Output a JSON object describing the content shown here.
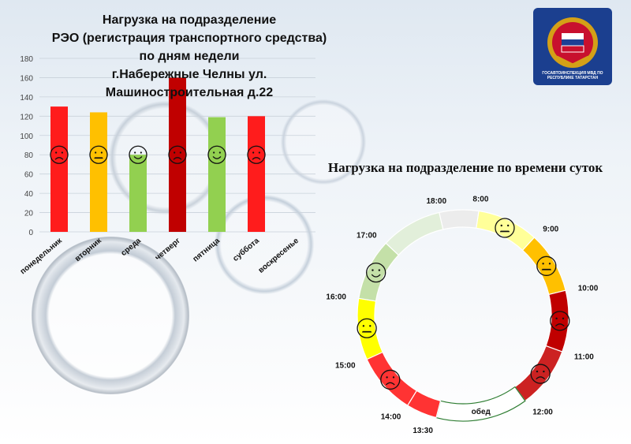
{
  "chart_data": [
    {
      "type": "bar",
      "title": "Нагрузка на подразделение РЭО (регистрация транспортного средства) по дням недели г.Набережные Челны ул. Машиностроительная д.22",
      "categories": [
        "понедельник",
        "вторник",
        "среда",
        "четверг",
        "пятница",
        "суббота",
        "воскресенье"
      ],
      "values": [
        130,
        124,
        80,
        160,
        119,
        120,
        0
      ],
      "colors": [
        "#ff1c1c",
        "#ffc000",
        "#92d050",
        "#c00000",
        "#92d050",
        "#ff1c1c",
        ""
      ],
      "moods": [
        "sad",
        "neutral",
        "happy",
        "sad",
        "happy",
        "sad",
        ""
      ],
      "ylim": [
        0,
        180
      ],
      "yticks": [
        0,
        20,
        40,
        60,
        80,
        100,
        120,
        140,
        160,
        180
      ],
      "grid": true
    },
    {
      "type": "pie",
      "title": "Нагрузка на подразделение по времени суток",
      "segments": [
        {
          "from": "8:00",
          "to": "9:00",
          "color": "#ffff99",
          "mood": "neutral"
        },
        {
          "from": "9:00",
          "to": "10:00",
          "color": "#ffc000",
          "mood": "neutral"
        },
        {
          "from": "10:00",
          "to": "11:00",
          "color": "#c00000",
          "mood": "sad"
        },
        {
          "from": "11:00",
          "to": "12:00",
          "color": "#cc2222",
          "mood": "sad"
        },
        {
          "from": "12:00",
          "to": "13:30",
          "color": "#ffffff",
          "label": "обед"
        },
        {
          "from": "13:30",
          "to": "14:00",
          "color": "#ff3333",
          "mood": ""
        },
        {
          "from": "14:00",
          "to": "15:00",
          "color": "#ff3333",
          "mood": "sad"
        },
        {
          "from": "15:00",
          "to": "16:00",
          "color": "#ffff00",
          "mood": "neutral"
        },
        {
          "from": "16:00",
          "to": "17:00",
          "color": "#c4e0a8",
          "mood": "happy"
        },
        {
          "from": "17:00",
          "to": "18:00",
          "color": "#e2efda",
          "mood": ""
        },
        {
          "from": "18:00",
          "to": "8:00",
          "color": "#ececec",
          "mood": ""
        }
      ],
      "time_labels": [
        "8:00",
        "9:00",
        "10:00",
        "11:00",
        "12:00",
        "13:30",
        "14:00",
        "15:00",
        "16:00",
        "17:00",
        "18:00"
      ]
    }
  ],
  "header": {
    "title_lines": [
      "Нагрузка на подразделение",
      "РЭО (регистрация транспортного средства)",
      "по дням недели",
      "г.Набережные Челны ул.",
      "Машиностроительная д.22"
    ],
    "logo_text": "ГОСАВТОИНСПЕКЦИЯ МВД ПО РЕСПУБЛИКЕ ТАТАРСТАН",
    "pie_title": "Нагрузка на подразделение по времени суток"
  }
}
